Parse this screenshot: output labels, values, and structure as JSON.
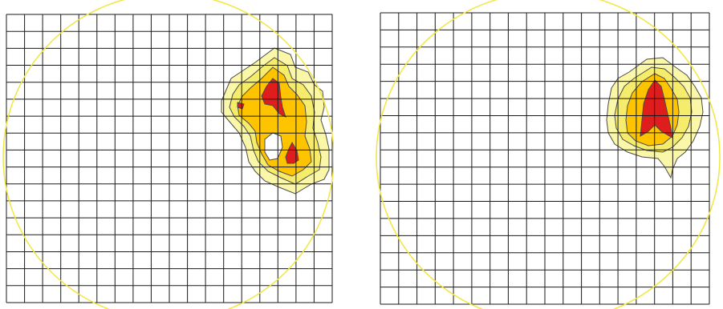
{
  "colors": {
    "background": "#ffffff",
    "grid_line": "#1a1a1a",
    "ellipse_outline": "#f2e640",
    "contour_outer": "#fbf7a8",
    "contour_middle": "#f5ec6c",
    "contour_inner": "#ffc400",
    "contour_core": "#e01d1d",
    "contour_stroke": "#4a4a4a"
  },
  "panels": [
    {
      "id": "left",
      "description_visible": false,
      "grid_rows": 17,
      "grid_cols": 18,
      "hotspot_count": 1,
      "core_regions": 3
    },
    {
      "id": "right",
      "description_visible": false,
      "grid_rows": 17,
      "grid_cols": 18,
      "hotspot_count": 1,
      "core_regions": 1
    }
  ]
}
